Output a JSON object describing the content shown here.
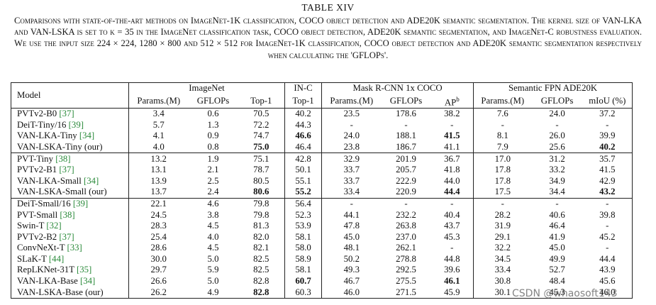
{
  "caption": {
    "title": "TABLE XIV",
    "text": "Comparisons with state-of-the-art methods on ImageNet-1K classification, COCO object detection and ADE20K semantic segmentation. The kernel size of VAN-LKA and VAN-LSKA is set to k = 35 in the ImageNet classification task, COCO object detection, ADE20K semantic segmentation, and ImageNet-C robustness evaluation. We use the input size 224 × 224, 1280 × 800 and 512 × 512 for ImageNet-1K classification, COCO object detection and ADE20K semantic segmentation respectively when calculating the 'GFLOPs'."
  },
  "table": {
    "groups": [
      {
        "label": "Model",
        "span": 1
      },
      {
        "label": "ImageNet",
        "span": 3
      },
      {
        "label": "IN-C",
        "span": 1
      },
      {
        "label": "Mask R-CNN 1x COCO",
        "span": 3
      },
      {
        "label": "Semantic FPN ADE20K",
        "span": 3
      }
    ],
    "columns": [
      "Params.(M)",
      "GFLOPs",
      "Top-1",
      "Top-1",
      "Params.(M)",
      "GFLOPs",
      {
        "text": "AP",
        "sup": "b"
      },
      "Params.(M)",
      "GFLOPs",
      "mIoU (%)"
    ],
    "sections": [
      {
        "rows": [
          {
            "model": "PVTv2-B0",
            "cite": "[37]",
            "cells": [
              "3.4",
              "0.6",
              "70.5",
              "40.2",
              "23.5",
              "178.6",
              "38.2",
              "7.6",
              "24.0",
              "37.2"
            ],
            "bold": []
          },
          {
            "model": "DeiT-Tiny/16",
            "cite": "[39]",
            "cells": [
              "5.7",
              "1.3",
              "72.2",
              "44.3",
              "-",
              "-",
              "-",
              "-",
              "-",
              "-"
            ],
            "bold": []
          },
          {
            "model": "VAN-LKA-Tiny",
            "cite": "[34]",
            "cells": [
              "4.1",
              "0.9",
              "74.7",
              "46.6",
              "24.0",
              "188.1",
              "41.5",
              "8.1",
              "26.0",
              "39.9"
            ],
            "bold": [
              3,
              6
            ]
          },
          {
            "model": "VAN-LSKA-Tiny (our)",
            "cells": [
              "4.0",
              "0.8",
              "75.0",
              "46.4",
              "23.8",
              "186.7",
              "41.1",
              "7.9",
              "25.6",
              "40.2"
            ],
            "bold": [
              2,
              9
            ]
          }
        ]
      },
      {
        "rows": [
          {
            "model": "PVT-Tiny",
            "cite": "[38]",
            "cells": [
              "13.2",
              "1.9",
              "75.1",
              "42.8",
              "32.9",
              "201.9",
              "36.7",
              "17.0",
              "31.2",
              "35.7"
            ],
            "bold": []
          },
          {
            "model": "PVTv2-B1",
            "cite": "[37]",
            "cells": [
              "13.1",
              "2.1",
              "78.7",
              "50.1",
              "33.7",
              "205.7",
              "41.8",
              "17.8",
              "33.2",
              "41.5"
            ],
            "bold": []
          },
          {
            "model": "VAN-LKA-Small",
            "cite": "[34]",
            "cells": [
              "13.9",
              "2.5",
              "80.5",
              "55.1",
              "33.7",
              "222.9",
              "44.0",
              "17.8",
              "34.9",
              "42.9"
            ],
            "bold": []
          },
          {
            "model": "VAN-LSKA-Small (our)",
            "cells": [
              "13.7",
              "2.4",
              "80.6",
              "55.2",
              "33.4",
              "220.9",
              "44.4",
              "17.5",
              "34.4",
              "43.2"
            ],
            "bold": [
              2,
              3,
              6,
              9
            ]
          }
        ]
      },
      {
        "rows": [
          {
            "model": "DeiT-Small/16",
            "cite": "[39]",
            "cells": [
              "22.1",
              "4.6",
              "79.8",
              "56.4",
              "-",
              "-",
              "-",
              "-",
              "-",
              "-"
            ],
            "bold": []
          },
          {
            "model": "PVT-Small",
            "cite": "[38]",
            "cells": [
              "24.5",
              "3.8",
              "79.8",
              "52.3",
              "44.1",
              "232.2",
              "40.4",
              "28.2",
              "40.6",
              "39.8"
            ],
            "bold": []
          },
          {
            "model": "Swin-T",
            "cite": "[32]",
            "cells": [
              "28.3",
              "4.5",
              "81.3",
              "53.9",
              "47.8",
              "263.8",
              "43.7",
              "31.9",
              "46.4",
              "-"
            ],
            "bold": []
          },
          {
            "model": "PVTv2-B2",
            "cite": "[37]",
            "cells": [
              "25.4",
              "4.0",
              "82.0",
              "58.1",
              "45.0",
              "237.0",
              "45.3",
              "29.1",
              "41.9",
              "45.2"
            ],
            "bold": []
          },
          {
            "model": "ConvNeXt-T",
            "cite": "[33]",
            "cells": [
              "28.6",
              "4.5",
              "82.1",
              "58.0",
              "48.1",
              "262.1",
              "-",
              "32.2",
              "45.0",
              "-"
            ],
            "bold": []
          },
          {
            "model": "SLaK-T",
            "cite": "[44]",
            "cells": [
              "30.0",
              "5.0",
              "82.5",
              "58.9",
              "50.2",
              "278.8",
              "44.8",
              "34.5",
              "49.9",
              "44.4"
            ],
            "bold": []
          },
          {
            "model": "RepLKNet-31T",
            "cite": "[35]",
            "cells": [
              "29.7",
              "5.9",
              "82.5",
              "58.1",
              "49.3",
              "292.5",
              "39.6",
              "33.4",
              "52.7",
              "43.9"
            ],
            "bold": []
          },
          {
            "model": "VAN-LKA-Base",
            "cite": "[34]",
            "cells": [
              "26.6",
              "5.0",
              "82.8",
              "60.7",
              "46.7",
              "275.5",
              "46.1",
              "30.8",
              "48.4",
              "45.6"
            ],
            "bold": [
              3,
              6
            ]
          },
          {
            "model": "VAN-LSKA-Base (our)",
            "cells": [
              "26.2",
              "4.9",
              "82.8",
              "60.3",
              "46.0",
              "271.5",
              "45.9",
              "30.1",
              "45.3",
              "46.0"
            ],
            "bold": [
              2
            ]
          }
        ]
      }
    ]
  },
  "watermark": "CSDN @whaosoft143"
}
